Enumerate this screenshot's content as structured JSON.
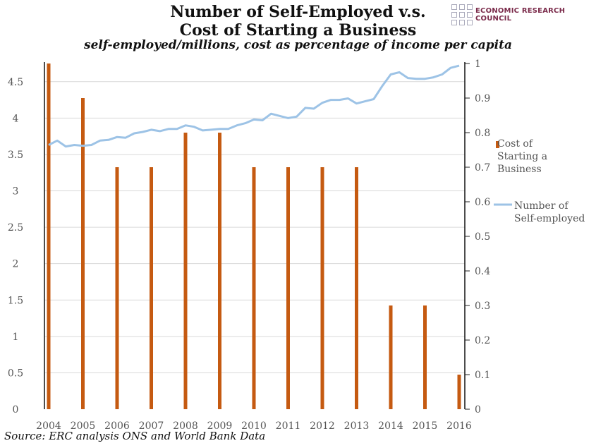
{
  "chart_data": {
    "type": "bar+line",
    "title": "Number of Self-Employed v.s. Cost of Starting a Business",
    "title_lines": [
      "Number of Self-Employed v.s.",
      "Cost of Starting a Business"
    ],
    "subtitle": "self-employed/millions, cost as percentage of income per capita",
    "source": "Source: ERC analysis ONS and World Bank Data",
    "logo_text": "ECONOMIC RESEARCH COUNCIL",
    "categories": [
      "2004",
      "2005",
      "2006",
      "2007",
      "2008",
      "2009",
      "2010",
      "2011",
      "2012",
      "2013",
      "2014",
      "2015",
      "2016"
    ],
    "left_axis": {
      "ticks": [
        "0",
        "0.5",
        "1",
        "1.5",
        "2",
        "2.5",
        "3",
        "3.5",
        "4",
        "4.5"
      ],
      "tick_values": [
        0,
        0.5,
        1,
        1.5,
        2,
        2.5,
        3,
        3.5,
        4,
        4.5
      ],
      "ylim": [
        0,
        4.75
      ]
    },
    "right_axis": {
      "ticks": [
        "0",
        "0.1",
        "0.2",
        "0.3",
        "0.4",
        "0.5",
        "0.6",
        "0.7",
        "0.8",
        "0.9",
        "1"
      ],
      "tick_values": [
        0,
        0.1,
        0.2,
        0.3,
        0.4,
        0.5,
        0.6,
        0.7,
        0.8,
        0.9,
        1
      ],
      "ylim": [
        0,
        1
      ]
    },
    "grid": true,
    "legend_position": "right",
    "series": [
      {
        "name": "Cost of Starting a Business",
        "legend_lines": [
          "Cost of",
          "Starting a",
          "Business"
        ],
        "type": "bar",
        "axis": "right",
        "color": "#c55a11",
        "x": [
          2004,
          2005,
          2006,
          2007,
          2008,
          2009,
          2010,
          2011,
          2012,
          2013,
          2014,
          2015,
          2016
        ],
        "values": [
          1.0,
          0.9,
          0.7,
          0.7,
          0.8,
          0.8,
          0.7,
          0.7,
          0.7,
          0.7,
          0.3,
          0.3,
          0.1
        ]
      },
      {
        "name": "Number of Self-employed",
        "legend_lines": [
          "Number of",
          "Self-employed"
        ],
        "type": "line",
        "axis": "left",
        "color": "#9dc3e6",
        "x": [
          2004,
          2004.25,
          2004.5,
          2004.75,
          2005,
          2005.25,
          2005.5,
          2005.75,
          2006,
          2006.25,
          2006.5,
          2006.75,
          2007,
          2007.25,
          2007.5,
          2007.75,
          2008,
          2008.25,
          2008.5,
          2008.75,
          2009,
          2009.25,
          2009.5,
          2009.75,
          2010,
          2010.25,
          2010.5,
          2010.75,
          2011,
          2011.25,
          2011.5,
          2011.75,
          2012,
          2012.25,
          2012.5,
          2012.75,
          2013,
          2013.25,
          2013.5,
          2013.75,
          2014,
          2014.25,
          2014.5,
          2014.75,
          2015,
          2015.25,
          2015.5,
          2015.75,
          2016
        ],
        "values": [
          3.63,
          3.69,
          3.61,
          3.63,
          3.62,
          3.63,
          3.69,
          3.7,
          3.74,
          3.73,
          3.79,
          3.81,
          3.84,
          3.82,
          3.85,
          3.85,
          3.9,
          3.88,
          3.83,
          3.84,
          3.85,
          3.85,
          3.9,
          3.93,
          3.98,
          3.97,
          4.06,
          4.03,
          4.0,
          4.02,
          4.14,
          4.13,
          4.21,
          4.25,
          4.25,
          4.27,
          4.2,
          4.23,
          4.26,
          4.44,
          4.6,
          4.63,
          4.55,
          4.54,
          4.54,
          4.56,
          4.6,
          4.69,
          4.72
        ]
      }
    ]
  }
}
